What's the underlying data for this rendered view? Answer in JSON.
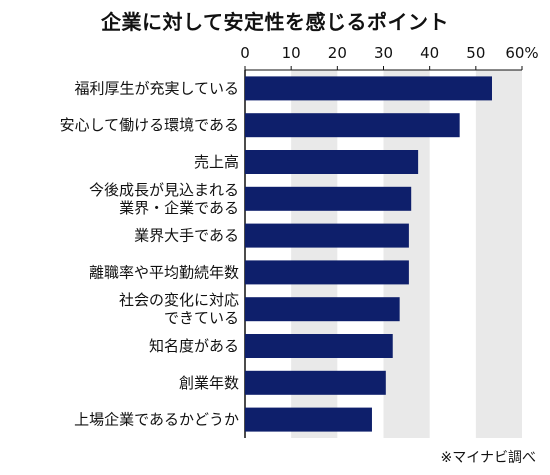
{
  "chart_data": {
    "type": "bar",
    "orientation": "horizontal",
    "title": "企業に対して安定性を感じるポイント",
    "note": "※マイナビ調べ",
    "xlim": [
      0,
      60
    ],
    "ticks": [
      0,
      10,
      20,
      30,
      40,
      50,
      60
    ],
    "tick_unit_last": "%",
    "bar_color": "#0e1f6b",
    "band_color": "#e9e9e9",
    "categories": [
      [
        "福利厚生が充実している"
      ],
      [
        "安心して働ける環境である"
      ],
      [
        "売上高"
      ],
      [
        "今後成長が見込まれる",
        "業界・企業である"
      ],
      [
        "業界大手である"
      ],
      [
        "離職率や平均勤続年数"
      ],
      [
        "社会の変化に対応",
        "できている"
      ],
      [
        "知名度がある"
      ],
      [
        "創業年数"
      ],
      [
        "上場企業であるかどうか"
      ]
    ],
    "values": [
      53.5,
      46.5,
      37.5,
      36.0,
      35.5,
      35.5,
      33.5,
      32.0,
      30.5,
      27.5
    ]
  }
}
